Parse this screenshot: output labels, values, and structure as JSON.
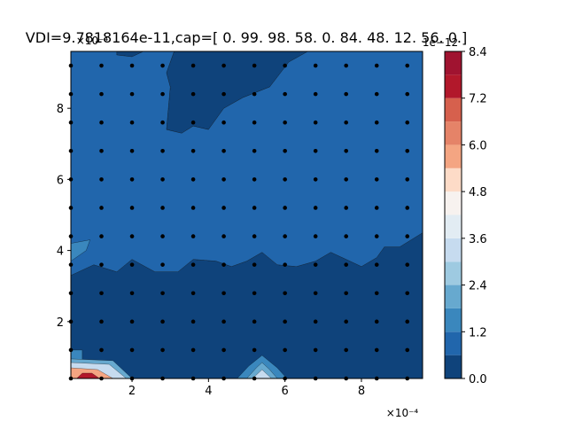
{
  "chart_data": {
    "type": "contourf",
    "title": "VDI=9.7818164e-11,cap=[ 0. 99. 98. 58.  0. 84. 48. 12. 56.  0.]",
    "xlabel": "",
    "ylabel": "",
    "x_offset_text": "×10⁻⁴",
    "y_offset_text": "×10⁻⁴",
    "colorbar_offset_text": "1e−12",
    "xlim": [
      0.4,
      9.6
    ],
    "ylim": [
      0.4,
      9.6
    ],
    "x_ticks": [
      "2",
      "4",
      "6",
      "8"
    ],
    "x_tick_values": [
      2,
      4,
      6,
      8
    ],
    "y_ticks": [
      "2",
      "4",
      "6",
      "8"
    ],
    "y_tick_values": [
      2,
      4,
      6,
      8
    ],
    "colorbar_ticks": [
      "0.0",
      "1.2",
      "2.4",
      "3.6",
      "4.8",
      "6.0",
      "7.2",
      "8.4"
    ],
    "colorbar_tick_values": [
      0,
      1.2,
      2.4,
      3.6,
      4.8,
      6.0,
      7.2,
      8.4
    ],
    "levels": [
      0,
      0.6,
      1.2,
      1.8,
      2.4,
      3.0,
      3.6,
      4.2,
      4.8,
      5.4,
      6.0,
      6.6,
      7.2,
      7.8,
      8.4
    ],
    "level_colors": [
      "#0f437b",
      "#2166ac",
      "#3a87bd",
      "#67a9cf",
      "#9ecae1",
      "#c6dbef",
      "#e2ecf3",
      "#f7f2ef",
      "#fddbc7",
      "#f4a582",
      "#e58368",
      "#d6604d",
      "#b2182b",
      "#a01330",
      "#800c25"
    ],
    "grid_points": {
      "x": [
        0.4,
        1.2,
        2.0,
        2.8,
        3.6,
        4.4,
        5.2,
        6.0,
        6.8,
        7.6,
        8.4,
        9.2
      ],
      "y": [
        0.4,
        1.2,
        2.0,
        2.8,
        3.6,
        4.4,
        5.2,
        6.0,
        6.8,
        7.6,
        8.4,
        9.2
      ]
    },
    "series": [
      {
        "level": "0.0–0.6",
        "regions": [
          [
            [
              0.4,
              0.4
            ],
            [
              0.4,
              3.3
            ],
            [
              1.0,
              3.6
            ],
            [
              1.6,
              3.4
            ],
            [
              2.0,
              3.75
            ],
            [
              2.6,
              3.4
            ],
            [
              3.2,
              3.4
            ],
            [
              3.6,
              3.75
            ],
            [
              4.2,
              3.7
            ],
            [
              4.6,
              3.55
            ],
            [
              5.0,
              3.7
            ],
            [
              5.4,
              3.95
            ],
            [
              5.8,
              3.6
            ],
            [
              6.3,
              3.55
            ],
            [
              6.8,
              3.7
            ],
            [
              7.2,
              3.95
            ],
            [
              7.7,
              3.7
            ],
            [
              8.0,
              3.55
            ],
            [
              8.4,
              3.8
            ],
            [
              8.6,
              4.1
            ],
            [
              9.0,
              4.1
            ],
            [
              9.6,
              4.5
            ],
            [
              9.6,
              0.4
            ]
          ],
          [
            [
              3.1,
              9.6
            ],
            [
              2.9,
              9.0
            ],
            [
              3.0,
              8.6
            ],
            [
              2.9,
              7.4
            ],
            [
              3.3,
              7.3
            ],
            [
              3.6,
              7.5
            ],
            [
              4.0,
              7.4
            ],
            [
              4.4,
              8.0
            ],
            [
              4.9,
              8.3
            ],
            [
              5.6,
              8.6
            ],
            [
              6.1,
              9.3
            ],
            [
              6.6,
              9.6
            ]
          ],
          [
            [
              1.6,
              9.6
            ],
            [
              1.6,
              9.5
            ],
            [
              2.0,
              9.45
            ],
            [
              2.3,
              9.6
            ]
          ]
        ]
      },
      {
        "level": "0.6–1.2",
        "regions": [
          [
            [
              0.4,
              3.3
            ],
            [
              0.4,
              9.6
            ],
            [
              1.6,
              9.6
            ],
            [
              1.6,
              9.5
            ],
            [
              2.0,
              9.45
            ],
            [
              2.3,
              9.6
            ],
            [
              3.1,
              9.6
            ],
            [
              2.9,
              9.0
            ],
            [
              3.0,
              8.6
            ],
            [
              2.9,
              7.4
            ],
            [
              3.3,
              7.3
            ],
            [
              3.6,
              7.5
            ],
            [
              4.0,
              7.4
            ],
            [
              4.4,
              8.0
            ],
            [
              4.9,
              8.3
            ],
            [
              5.6,
              8.6
            ],
            [
              6.1,
              9.3
            ],
            [
              6.6,
              9.6
            ],
            [
              9.6,
              9.6
            ],
            [
              9.6,
              4.5
            ],
            [
              9.0,
              4.1
            ],
            [
              8.6,
              4.1
            ],
            [
              8.4,
              3.8
            ],
            [
              8.0,
              3.55
            ],
            [
              7.7,
              3.7
            ],
            [
              7.2,
              3.95
            ],
            [
              6.8,
              3.7
            ],
            [
              6.3,
              3.55
            ],
            [
              5.8,
              3.6
            ],
            [
              5.4,
              3.95
            ],
            [
              5.0,
              3.7
            ],
            [
              4.6,
              3.55
            ],
            [
              4.2,
              3.7
            ],
            [
              3.6,
              3.75
            ],
            [
              3.2,
              3.4
            ],
            [
              2.6,
              3.4
            ],
            [
              2.0,
              3.75
            ],
            [
              1.6,
              3.4
            ],
            [
              1.0,
              3.6
            ]
          ]
        ]
      },
      {
        "level": "1.2–1.8",
        "regions": [
          [
            [
              0.4,
              3.7
            ],
            [
              0.8,
              4.0
            ],
            [
              0.9,
              4.3
            ],
            [
              0.4,
              4.2
            ]
          ],
          [
            [
              4.75,
              0.4
            ],
            [
              5.05,
              0.75
            ],
            [
              5.4,
              1.05
            ],
            [
              5.8,
              0.7
            ],
            [
              6.05,
              0.4
            ]
          ],
          [
            [
              0.4,
              0.4
            ],
            [
              0.4,
              1.2
            ],
            [
              0.7,
              1.2
            ],
            [
              0.7,
              0.4
            ]
          ]
        ]
      },
      {
        "level": "1.8–3.0",
        "regions": [
          [
            [
              5.0,
              0.4
            ],
            [
              5.25,
              0.7
            ],
            [
              5.4,
              0.85
            ],
            [
              5.6,
              0.65
            ],
            [
              5.8,
              0.4
            ]
          ],
          [
            [
              0.4,
              0.4
            ],
            [
              0.4,
              0.95
            ],
            [
              1.5,
              0.9
            ],
            [
              2.0,
              0.4
            ]
          ]
        ]
      },
      {
        "level": "3.0–5.4",
        "regions": [
          [
            [
              5.15,
              0.4
            ],
            [
              5.4,
              0.65
            ],
            [
              5.65,
              0.4
            ]
          ],
          [
            [
              0.4,
              0.4
            ],
            [
              0.4,
              0.85
            ],
            [
              1.4,
              0.8
            ],
            [
              1.85,
              0.4
            ]
          ]
        ]
      },
      {
        "level": "5.4–7.2",
        "regions": [
          [
            [
              0.4,
              0.4
            ],
            [
              0.4,
              0.7
            ],
            [
              1.1,
              0.65
            ],
            [
              1.5,
              0.4
            ]
          ]
        ]
      },
      {
        "level": "7.2–8.4",
        "regions": [
          [
            [
              0.55,
              0.4
            ],
            [
              0.7,
              0.55
            ],
            [
              0.95,
              0.55
            ],
            [
              1.15,
              0.4
            ]
          ]
        ]
      }
    ]
  }
}
